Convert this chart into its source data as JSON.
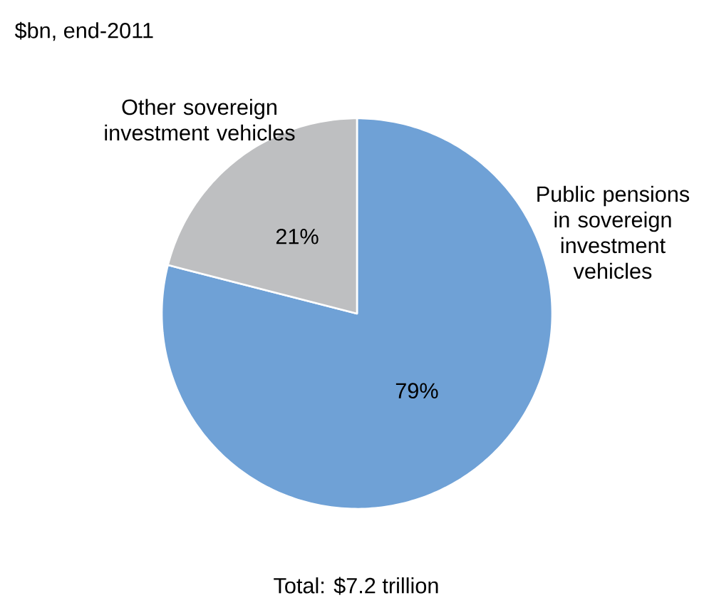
{
  "chart_data": {
    "type": "pie",
    "title": "$bn, end-2011",
    "categories": [
      "Public pensions in sovereign investment vehicles",
      "Other sovereign investment vehicles"
    ],
    "values": [
      79,
      21
    ],
    "colors": [
      "#6fa1d6",
      "#bebfc1"
    ],
    "value_labels": [
      "79%",
      "21%"
    ],
    "annotations": [
      "Total: $7.2 trillion"
    ]
  }
}
